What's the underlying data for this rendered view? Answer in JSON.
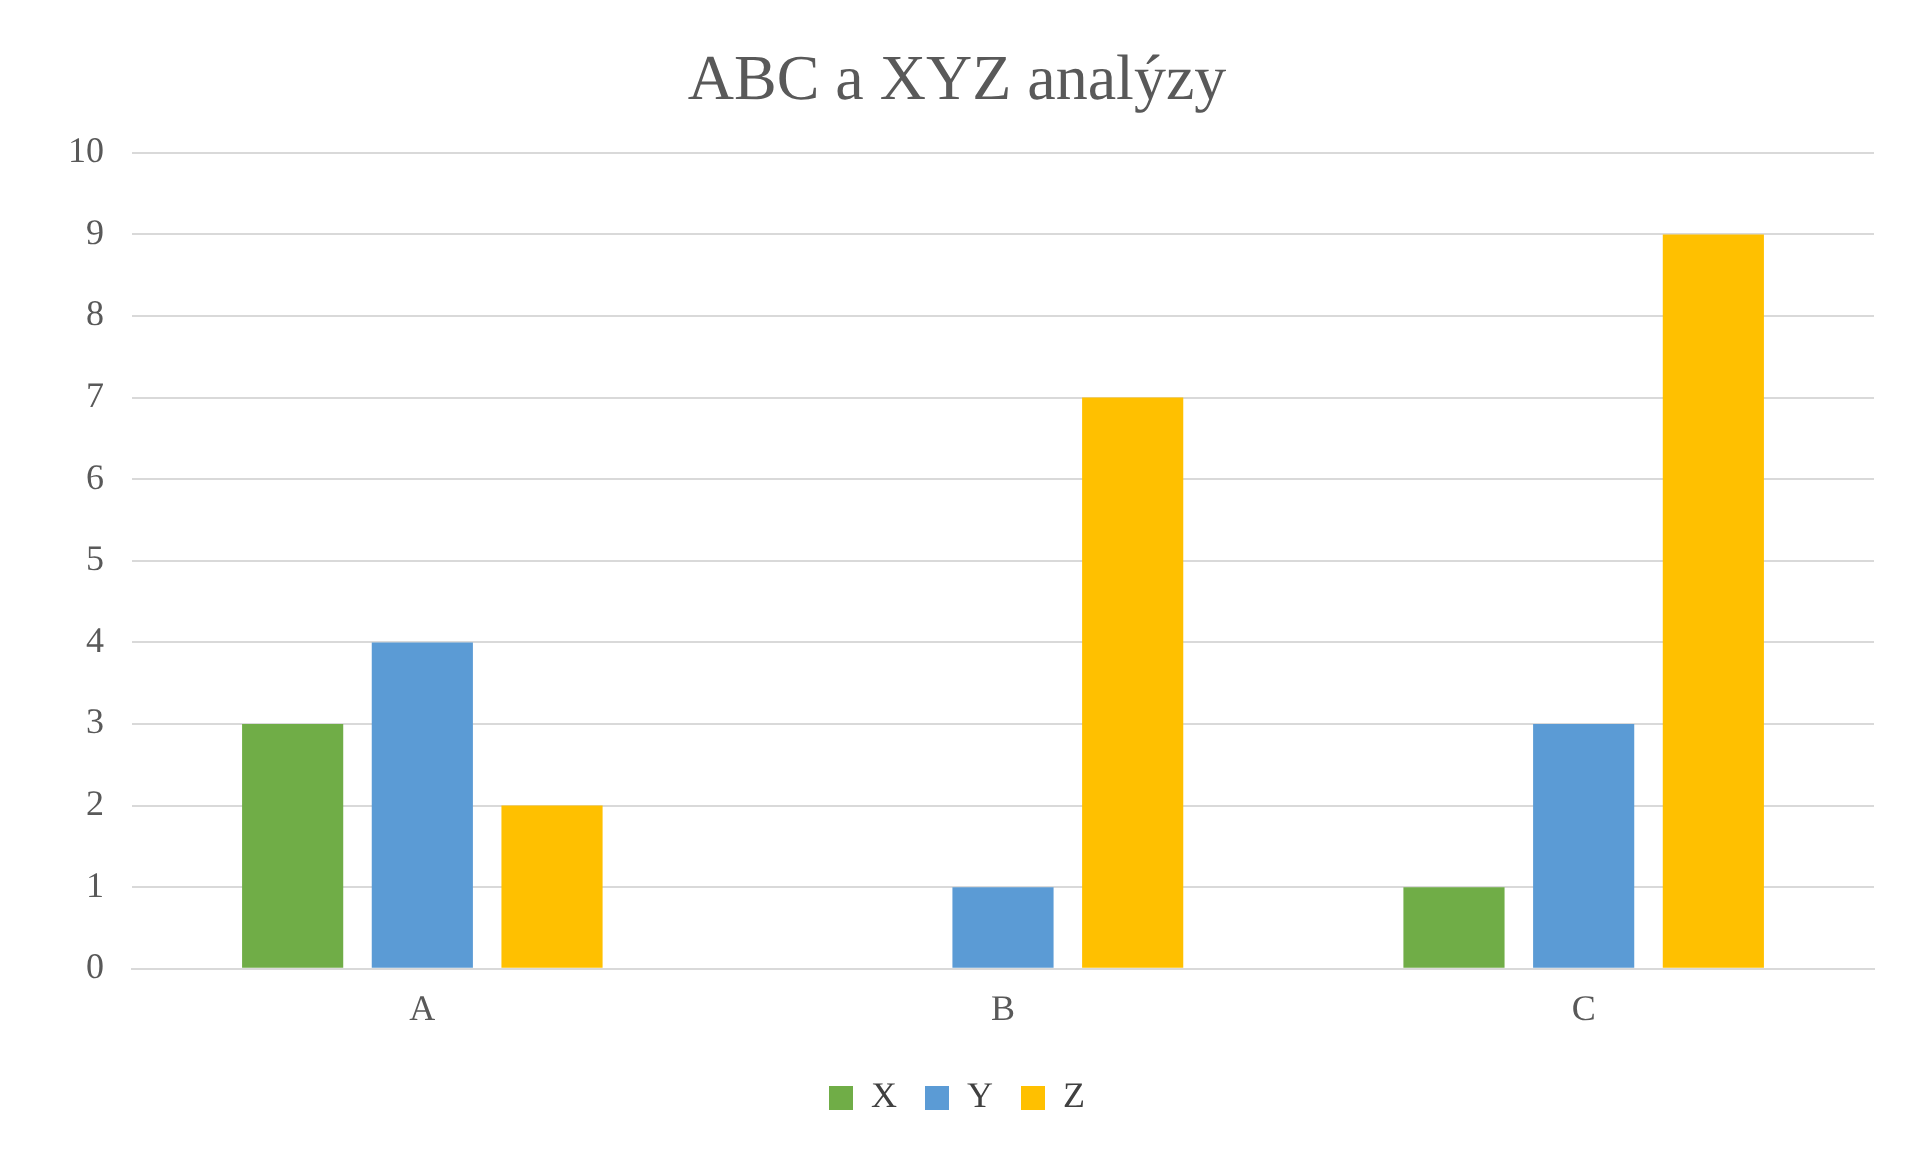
{
  "chart_data": {
    "type": "bar",
    "title": "ABC a XYZ analýzy",
    "categories": [
      "A",
      "B",
      "C"
    ],
    "series": [
      {
        "name": "X",
        "color": "#70ad47",
        "values": [
          3,
          0,
          1
        ]
      },
      {
        "name": "Y",
        "color": "#5b9bd5",
        "values": [
          4,
          1,
          3
        ]
      },
      {
        "name": "Z",
        "color": "#ffc000",
        "values": [
          2,
          7,
          9
        ]
      }
    ],
    "ylim": [
      0,
      10
    ],
    "yticks": [
      0,
      1,
      2,
      3,
      4,
      5,
      6,
      7,
      8,
      9,
      10
    ],
    "grid": "y",
    "legend": "bottom"
  }
}
